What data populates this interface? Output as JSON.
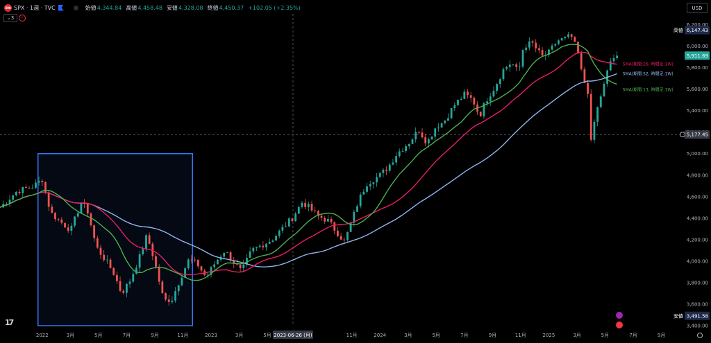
{
  "header": {
    "logo_text": "500",
    "symbol": "SPX · 1週 · TVC",
    "open_label": "始値",
    "open_value": "4,344.84",
    "high_label": "高値",
    "high_value": "4,458.48",
    "low_label": "安値",
    "low_value": "4,328.08",
    "close_label": "終値",
    "close_value": "4,450.37",
    "change": "+102.05 (+2.35%)",
    "indicator_count": "3",
    "alert_icon": "exclamation-icon"
  },
  "currency": "USD",
  "colors": {
    "up": "#26a69a",
    "down": "#ef5350",
    "sma13": "#4caf50",
    "sma26": "#e91e63",
    "sma52": "#90b4ee",
    "box": "#3179f5",
    "price_label": "#26a69a",
    "high_label": "#2962ff",
    "low_label": "#2962ff"
  },
  "chart_data": {
    "type": "candlestick",
    "interval": "1W",
    "ylim": [
      3400,
      6300
    ],
    "y_ticks": [
      3400,
      3600,
      3800,
      4000,
      4200,
      4400,
      4600,
      4800,
      5000,
      5200,
      5400,
      5600,
      5800,
      6000,
      6200
    ],
    "y_tick_labels": [
      "3,400.00",
      "3,600.00",
      "3,800.00",
      "4,000.00",
      "4,200.00",
      "4,400.00",
      "4,600.00",
      "4,800.00",
      "5,000.00",
      "5,200.00",
      "5,400.00",
      "5,600.00",
      "5,800.00",
      "6,000.00",
      "6,200.00"
    ],
    "x_ticks": [
      {
        "t": 2022.0,
        "label": "2022"
      },
      {
        "t": 2022.167,
        "label": "3月"
      },
      {
        "t": 2022.333,
        "label": "5月"
      },
      {
        "t": 2022.5,
        "label": "7月"
      },
      {
        "t": 2022.667,
        "label": "9月"
      },
      {
        "t": 2022.833,
        "label": "11月"
      },
      {
        "t": 2023.0,
        "label": "2023"
      },
      {
        "t": 2023.167,
        "label": "3月"
      },
      {
        "t": 2023.333,
        "label": "5月"
      },
      {
        "t": 2023.833,
        "label": "11月"
      },
      {
        "t": 2024.0,
        "label": "2024"
      },
      {
        "t": 2024.167,
        "label": "3月"
      },
      {
        "t": 2024.333,
        "label": "5月"
      },
      {
        "t": 2024.5,
        "label": "7月"
      },
      {
        "t": 2024.667,
        "label": "9月"
      },
      {
        "t": 2024.833,
        "label": "11月"
      },
      {
        "t": 2025.0,
        "label": "2025"
      },
      {
        "t": 2025.167,
        "label": "3月"
      },
      {
        "t": 2025.333,
        "label": "5月"
      },
      {
        "t": 2025.5,
        "label": "7月"
      },
      {
        "t": 2025.667,
        "label": "9月"
      }
    ],
    "crosshair": {
      "t": 2023.485,
      "y": 5177.45,
      "date_label": "2023-06-26 (月)",
      "price_label": "5,177.45"
    },
    "last_price": {
      "label": "5,911.69",
      "value": 5911.69
    },
    "high_marker": {
      "label": "高値",
      "value_label": "6,147.43",
      "value": 6147.43
    },
    "low_marker": {
      "label": "安値",
      "value_label": "3,491.58",
      "value": 3491.58
    },
    "box": {
      "t0": 2021.975,
      "t1": 2022.89,
      "y_top": 5000,
      "y_bottom": 3400
    },
    "series_labels": {
      "sma26": "SMA(期間:26, 時間足:1W)",
      "sma52": "SMA(期間:52, 時間足:1W)",
      "sma13": "SMA(期間:13, 時間足:1W)"
    },
    "close_anchors": [
      [
        2021.75,
        4500
      ],
      [
        2021.85,
        4650
      ],
      [
        2021.95,
        4700
      ],
      [
        2022.0,
        4760
      ],
      [
        2022.05,
        4450
      ],
      [
        2022.12,
        4350
      ],
      [
        2022.17,
        4290
      ],
      [
        2022.23,
        4550
      ],
      [
        2022.27,
        4460
      ],
      [
        2022.32,
        4130
      ],
      [
        2022.37,
        4020
      ],
      [
        2022.42,
        3900
      ],
      [
        2022.47,
        3700
      ],
      [
        2022.52,
        3820
      ],
      [
        2022.58,
        4050
      ],
      [
        2022.62,
        4240
      ],
      [
        2022.66,
        4030
      ],
      [
        2022.72,
        3630
      ],
      [
        2022.77,
        3650
      ],
      [
        2022.82,
        3850
      ],
      [
        2022.87,
        4020
      ],
      [
        2022.92,
        3970
      ],
      [
        2022.97,
        3850
      ],
      [
        2023.03,
        4000
      ],
      [
        2023.08,
        4100
      ],
      [
        2023.14,
        3980
      ],
      [
        2023.18,
        3900
      ],
      [
        2023.24,
        4100
      ],
      [
        2023.3,
        4150
      ],
      [
        2023.36,
        4200
      ],
      [
        2023.42,
        4300
      ],
      [
        2023.48,
        4400
      ],
      [
        2023.54,
        4550
      ],
      [
        2023.58,
        4500
      ],
      [
        2023.63,
        4420
      ],
      [
        2023.69,
        4380
      ],
      [
        2023.74,
        4280
      ],
      [
        2023.79,
        4180
      ],
      [
        2023.83,
        4360
      ],
      [
        2023.87,
        4550
      ],
      [
        2023.92,
        4720
      ],
      [
        2024.0,
        4800
      ],
      [
        2024.05,
        4880
      ],
      [
        2024.1,
        5000
      ],
      [
        2024.17,
        5100
      ],
      [
        2024.23,
        5220
      ],
      [
        2024.28,
        5100
      ],
      [
        2024.33,
        5250
      ],
      [
        2024.38,
        5300
      ],
      [
        2024.44,
        5450
      ],
      [
        2024.5,
        5550
      ],
      [
        2024.55,
        5500
      ],
      [
        2024.59,
        5350
      ],
      [
        2024.63,
        5500
      ],
      [
        2024.68,
        5620
      ],
      [
        2024.73,
        5780
      ],
      [
        2024.78,
        5850
      ],
      [
        2024.82,
        5750
      ],
      [
        2024.85,
        6000
      ],
      [
        2024.9,
        6030
      ],
      [
        2024.96,
        5900
      ],
      [
        2025.0,
        5940
      ],
      [
        2025.05,
        6050
      ],
      [
        2025.1,
        6070
      ],
      [
        2025.13,
        6100
      ],
      [
        2025.17,
        5950
      ],
      [
        2025.2,
        5700
      ],
      [
        2025.23,
        5600
      ],
      [
        2025.25,
        5100
      ],
      [
        2025.27,
        5300
      ],
      [
        2025.3,
        5500
      ],
      [
        2025.33,
        5650
      ],
      [
        2025.36,
        5850
      ],
      [
        2025.39,
        5900
      ],
      [
        2025.41,
        5911.69
      ]
    ]
  }
}
